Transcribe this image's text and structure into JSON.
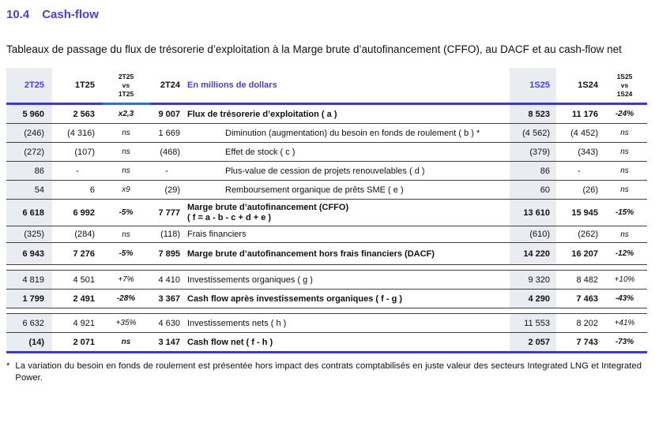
{
  "colors": {
    "accent_blue": "#4a40d8",
    "rule_blue": "#3e36d6",
    "rule_light_segment": "#2e6ce4",
    "shaded_column": "#e9edf2"
  },
  "section_number": "10.4",
  "section_title": "Cash-flow",
  "subtitle": "Tableaux de passage du flux de trésorerie d’exploitation à la Marge brute d’autofinancement (CFFO), au DACF et au cash-flow net",
  "t": {
    "headers": {
      "q_cur": "2T25",
      "q_prev": "1T25",
      "q_vs": [
        "2T25",
        "vs",
        "1T25"
      ],
      "q_yoy": "2T24",
      "label": "En millions de dollars",
      "s_cur": "1S25",
      "s_prev": "1S24",
      "s_vs": [
        "1S25",
        "vs",
        "1S24"
      ]
    },
    "rows": [
      {
        "c1": "5 960",
        "c2": "2 563",
        "c3": "x2,3",
        "c4": "9 007",
        "label": "Flux de trésorerie d’exploitation ( a )",
        "c5": "8 523",
        "c6": "11 176",
        "c7": "-24%"
      },
      {
        "c1": "(246)",
        "c2": "(4 316)",
        "c3": "ns",
        "c4": "1 669",
        "label": "Diminution (augmentation) du besoin en fonds de roulement ( b ) *",
        "c5": "(4 562)",
        "c6": "(4 452)",
        "c7": "ns"
      },
      {
        "c1": "(272)",
        "c2": "(107)",
        "c3": "ns",
        "c4": "(468)",
        "label": "Effet de stock ( c )",
        "c5": "(379)",
        "c6": "(343)",
        "c7": "ns"
      },
      {
        "c1": "86",
        "c2": "-",
        "c3": "ns",
        "c4": "-",
        "label": "Plus-value de cession de projets renouvelables ( d )",
        "c5": "86",
        "c6": "-",
        "c7": "ns"
      },
      {
        "c1": "54",
        "c2": "6",
        "c3": "x9",
        "c4": "(29)",
        "label": "Remboursement organique de prêts SME ( e )",
        "c5": "60",
        "c6": "(26)",
        "c7": "ns"
      },
      {
        "c1": "6 618",
        "c2": "6 992",
        "c3": "-5%",
        "c4": "7 777",
        "label": "Marge brute d’autofinancement (CFFO)",
        "label2": "( f = a - b - c + d + e )",
        "c5": "13 610",
        "c6": "15 945",
        "c7": "-15%"
      },
      {
        "c1": "(325)",
        "c2": "(284)",
        "c3": "ns",
        "c4": "(118)",
        "label": "Frais financiers",
        "c5": "(610)",
        "c6": "(262)",
        "c7": "ns"
      },
      {
        "c1": "6 943",
        "c2": "7 276",
        "c3": "-5%",
        "c4": "7 895",
        "label": "Marge brute d’autofinancement hors frais financiers (DACF)",
        "c5": "14 220",
        "c6": "16 207",
        "c7": "-12%"
      },
      {
        "c1": "4 819",
        "c2": "4 501",
        "c3": "+7%",
        "c4": "4 410",
        "label": "Investissements organiques ( g )",
        "c5": "9 320",
        "c6": "8 482",
        "c7": "+10%"
      },
      {
        "c1": "1 799",
        "c2": "2 491",
        "c3": "-28%",
        "c4": "3 367",
        "label": "Cash flow après investissements organiques ( f - g )",
        "c5": "4 290",
        "c6": "7 463",
        "c7": "-43%"
      },
      {
        "c1": "6 632",
        "c2": "4 921",
        "c3": "+35%",
        "c4": "4 630",
        "label": "Investissements nets ( h )",
        "c5": "11 553",
        "c6": "8 202",
        "c7": "+41%"
      },
      {
        "c1": "(14)",
        "c2": "2 071",
        "c3": "ns",
        "c4": "3 147",
        "label": "Cash flow net ( f - h )",
        "c5": "2 057",
        "c6": "7 743",
        "c7": "-73%"
      }
    ]
  },
  "footnote": {
    "marker": "*",
    "text": "La variation du besoin en fonds de roulement est présentée hors impact des contrats comptabilisés en juste valeur des secteurs Integrated LNG et Integrated Power."
  }
}
